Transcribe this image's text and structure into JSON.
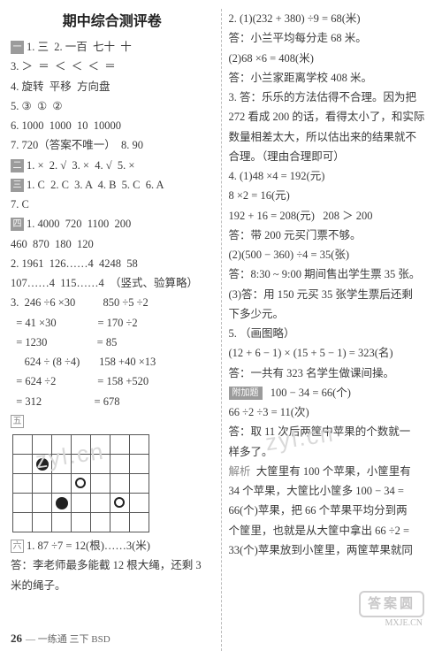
{
  "title": "期中综合测评卷",
  "watermark": "zyl.cn",
  "footer": {
    "page": "26",
    "tail": "— 一练通  三下 BSD"
  },
  "stamp": "答案圆",
  "stamp_sub": "MXJE.CN",
  "left": {
    "s1": {
      "l1": "1. 三  2. 一百  七十  十",
      "l2": "3. ＞  ＝  ＜  ＜  ＜  ＝",
      "l3": "4. 旋转  平移  方向盘",
      "l4": "5. ③  ①  ②",
      "l5": "6. 1000  1000  10  10000",
      "l6": "7. 720（答案不唯一）  8. 90"
    },
    "s2": "1. ×  2. √  3. ×  4. √  5. ×",
    "s3": {
      "a": "1. C  2. C  3. A  4. B  5. C  6. A",
      "b": "7. C"
    },
    "s4": {
      "l1": "1. 4000  720  1100  200",
      "l2": "460  870  180  120",
      "l3": "2. 1961  126……4  4248  58",
      "l4": "107……4  115……4  （竖式、验算略）",
      "l5": "3.  246 ÷6 ×30          850 ÷5 ÷2",
      "l6": "  = 41 ×30               = 170 ÷2",
      "l7": "  = 1230                  = 85",
      "l8": "     624 ÷ (8 ÷4)       158 +40 ×13",
      "l9": "  = 624 ÷2               = 158 +520",
      "l10": "  = 312                   = 678"
    },
    "s5_label": "五",
    "s6": {
      "l1": "1. 87 ÷7 = 12(根)……3(米)",
      "l2": "答：李老师最多能截 12 根大绳，还剩 3",
      "l3": "米的绳子。"
    },
    "grid": {
      "rows": 5,
      "cols": 7,
      "dots": [
        {
          "r": 1,
          "c": 1,
          "k": "black"
        },
        {
          "r": 2,
          "c": 3,
          "k": "white"
        },
        {
          "r": 3,
          "c": 2,
          "k": "black"
        },
        {
          "r": 3,
          "c": 5,
          "k": "white"
        }
      ]
    }
  },
  "right": {
    "l1": "2. (1)(232 + 380) ÷9 = 68(米)",
    "l2": "答：小兰平均每分走 68 米。",
    "l3": "(2)68 ×6 = 408(米)",
    "l4": "答：小兰家距离学校 408 米。",
    "l5": "3. 答：乐乐的方法估得不合理。因为把",
    "l6": "272 看成 200 的话，看得太小了，和实际",
    "l7": "数量相差太大，所以估出来的结果就不",
    "l8": "合理。（理由合理即可）",
    "l9": "4. (1)48 ×4 = 192(元)",
    "l10": "8 ×2 = 16(元)",
    "l11": "192 + 16 = 208(元)   208 ＞ 200",
    "l12": "答：带 200 元买门票不够。",
    "l13": "(2)(500 − 360) ÷4 = 35(张)",
    "l14": "答：8:30 ~ 9:00 期间售出学生票 35 张。",
    "l15": "(3)答：用 150 元买 35 张学生票后还剩",
    "l16": "下多少元。",
    "l17": "5. （画图略）",
    "l18": "(12 + 6 − 1) × (15 + 5 − 1) = 323(名)",
    "l19": "答：一共有 323 名学生做课间操。",
    "bonus_label": "附加题",
    "l20": "  100 − 34 = 66(个)",
    "l21": "66 ÷2 ÷3 = 11(次)",
    "l22": "答：取 11 次后两筐中苹果的个数就一",
    "l23": "样多了。",
    "exp_label": "解析",
    "l24": "  大筐里有 100 个苹果，小筐里有",
    "l25": "34 个苹果，大筐比小筐多 100 − 34 =",
    "l26": "66(个)苹果，把 66 个苹果平均分到两",
    "l27": "个筐里，也就是从大筐中拿出 66 ÷2 =",
    "l28": "33(个)苹果放到小筐里，两筐苹果就同"
  }
}
